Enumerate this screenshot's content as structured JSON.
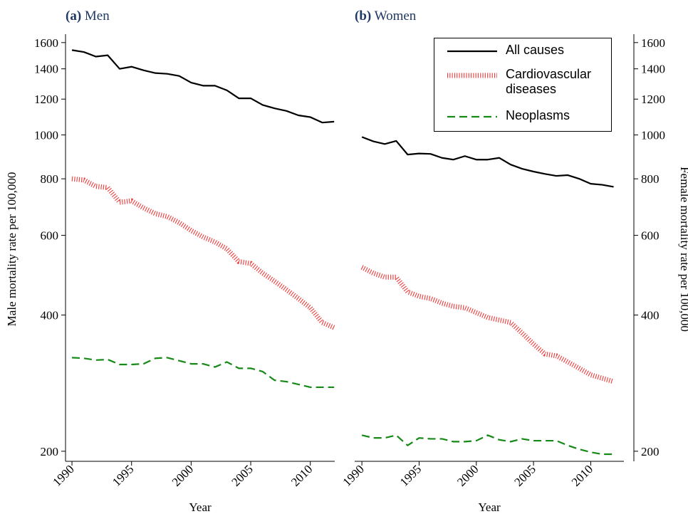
{
  "chart_data": [
    {
      "type": "line",
      "panel_label": "(a)",
      "title": "Men",
      "ylabel": "Male mortality rate per 100,000",
      "xlabel": "Year",
      "log": true,
      "yaxis_side": "left",
      "x": [
        1990,
        1991,
        1992,
        1993,
        1994,
        1995,
        1996,
        1997,
        1998,
        1999,
        2000,
        2001,
        2002,
        2003,
        2004,
        2005,
        2006,
        2007,
        2008,
        2009,
        2010,
        2011,
        2012
      ],
      "series": [
        {
          "color": "#000000",
          "style": "solid",
          "values": [
            1540,
            1525,
            1490,
            1500,
            1400,
            1415,
            1390,
            1370,
            1365,
            1350,
            1305,
            1285,
            1285,
            1255,
            1205,
            1205,
            1165,
            1145,
            1130,
            1105,
            1095,
            1065,
            1070
          ]
        },
        {
          "color": "#ee3b3b",
          "style": "dotted",
          "values": [
            800,
            795,
            770,
            765,
            710,
            715,
            690,
            670,
            660,
            640,
            615,
            595,
            580,
            560,
            525,
            520,
            495,
            475,
            455,
            435,
            415,
            385,
            375
          ]
        },
        {
          "color": "#168a16",
          "style": "dashed",
          "values": [
            322,
            321,
            318,
            319,
            311,
            311,
            312,
            321,
            322,
            317,
            312,
            312,
            307,
            315,
            305,
            305,
            300,
            287,
            285,
            281,
            277,
            277,
            277
          ]
        }
      ],
      "xlim": [
        1989.46,
        2012.05
      ],
      "ylim": [
        190,
        1670
      ],
      "xticks": [
        1990,
        1995,
        2000,
        2005,
        2010
      ],
      "yticks": [
        200,
        400,
        600,
        800,
        1000,
        1200,
        1400,
        1600
      ]
    },
    {
      "type": "line",
      "panel_label": "(b)",
      "title": "Women",
      "ylabel": "Female mortality rate per 100,000",
      "xlabel": "Year",
      "log": true,
      "yaxis_side": "right",
      "x": [
        1990,
        1991,
        1992,
        1993,
        1994,
        1995,
        1996,
        1997,
        1998,
        1999,
        2000,
        2001,
        2002,
        2003,
        2004,
        2005,
        2006,
        2007,
        2008,
        2009,
        2010,
        2011,
        2012
      ],
      "series": [
        {
          "name": "All causes",
          "color": "#000000",
          "style": "solid",
          "values": [
            990,
            968,
            955,
            970,
            905,
            910,
            908,
            890,
            882,
            898,
            882,
            882,
            890,
            860,
            842,
            830,
            820,
            812,
            815,
            800,
            780,
            776,
            768
          ]
        },
        {
          "name": "Cardiovascular diseases",
          "color": "#ee3b3b",
          "style": "dotted",
          "values": [
            510,
            495,
            485,
            485,
            450,
            440,
            435,
            425,
            418,
            415,
            405,
            395,
            390,
            385,
            365,
            345,
            328,
            325,
            315,
            305,
            295,
            290,
            285
          ]
        },
        {
          "name": "Neoplasms",
          "color": "#168a16",
          "style": "dashed",
          "values": [
            217,
            214,
            214,
            217,
            206,
            214,
            213,
            213,
            210,
            210,
            211,
            217,
            212,
            210,
            213,
            211,
            211,
            211,
            206,
            202,
            199,
            197,
            197
          ]
        }
      ],
      "xlim": [
        1989.37,
        2012.9
      ],
      "ylim": [
        190,
        1670
      ],
      "xticks": [
        1990,
        1995,
        2000,
        2005,
        2010
      ],
      "yticks": [
        200,
        400,
        600,
        800,
        1000,
        1200,
        1400,
        1600
      ],
      "legend": "upper right"
    }
  ]
}
